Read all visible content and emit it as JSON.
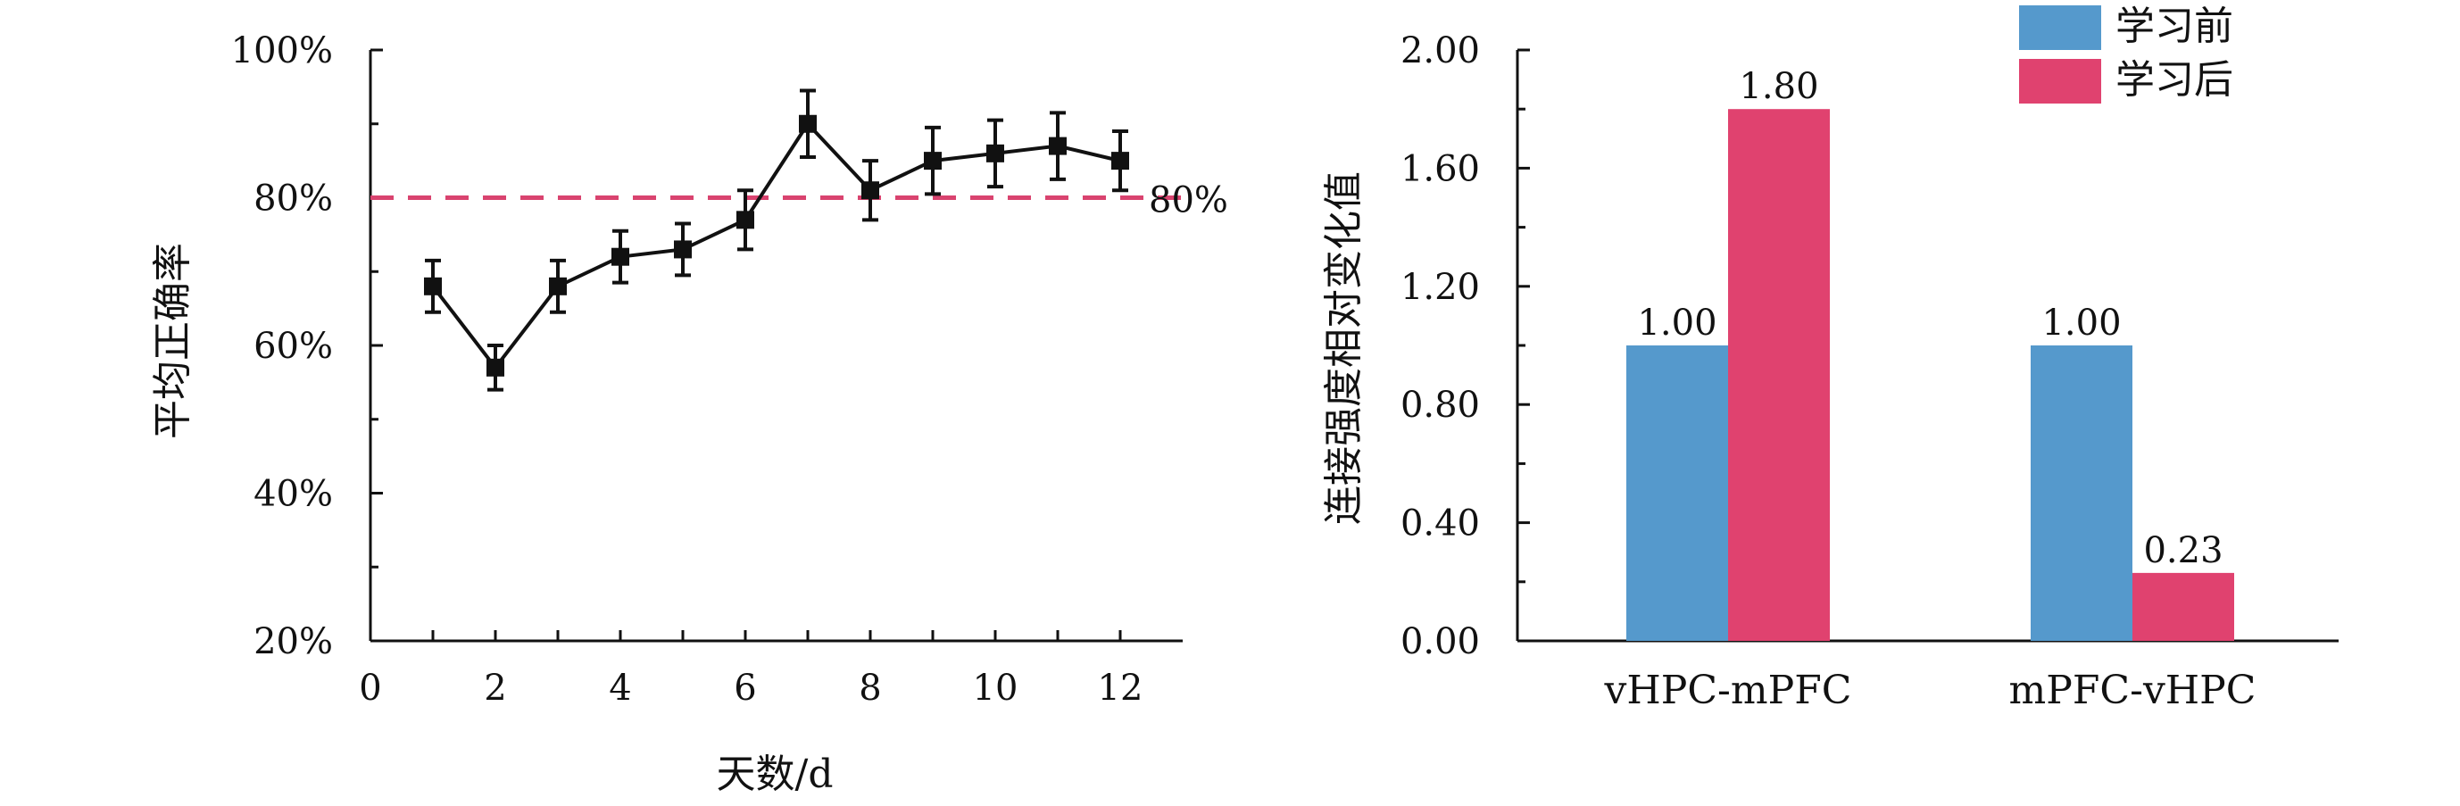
{
  "chart_data": [
    {
      "type": "line",
      "xlabel": "天数/d",
      "ylabel": "平均正确率",
      "xlim": [
        0,
        13
      ],
      "ylim": [
        20,
        100
      ],
      "xticks": [
        "0",
        "2",
        "4",
        "6",
        "8",
        "10",
        "12"
      ],
      "yticks": [
        "20%",
        "40%",
        "60%",
        "80%",
        "100%"
      ],
      "x": [
        1,
        2,
        3,
        4,
        5,
        6,
        7,
        8,
        9,
        10,
        11,
        12
      ],
      "y": [
        68,
        57,
        68,
        72,
        73,
        77,
        90,
        81,
        85,
        86,
        87,
        85
      ],
      "error": [
        3.5,
        3,
        3.5,
        3.5,
        3.5,
        4,
        4.5,
        4,
        4.5,
        4.5,
        4.5,
        4
      ],
      "reference_line": {
        "y": 80,
        "label": "80%",
        "color": "#d9436f"
      },
      "line_color": "#111111"
    },
    {
      "type": "bar",
      "ylabel": "连接强度相对变化值",
      "ylim": [
        0,
        2
      ],
      "yticks": [
        "0.00",
        "0.40",
        "0.80",
        "1.20",
        "1.60",
        "2.00"
      ],
      "categories": [
        "vHPC-mPFC",
        "mPFC-vHPC"
      ],
      "series": [
        {
          "name": "学习前",
          "values": [
            1.0,
            1.0
          ],
          "labels": [
            "1.00",
            "1.00"
          ],
          "color": "#5599cc"
        },
        {
          "name": "学习后",
          "values": [
            1.8,
            0.23
          ],
          "labels": [
            "1.80",
            "0.23"
          ],
          "color": "#e0426f"
        }
      ],
      "legend_position": "top-right"
    }
  ]
}
